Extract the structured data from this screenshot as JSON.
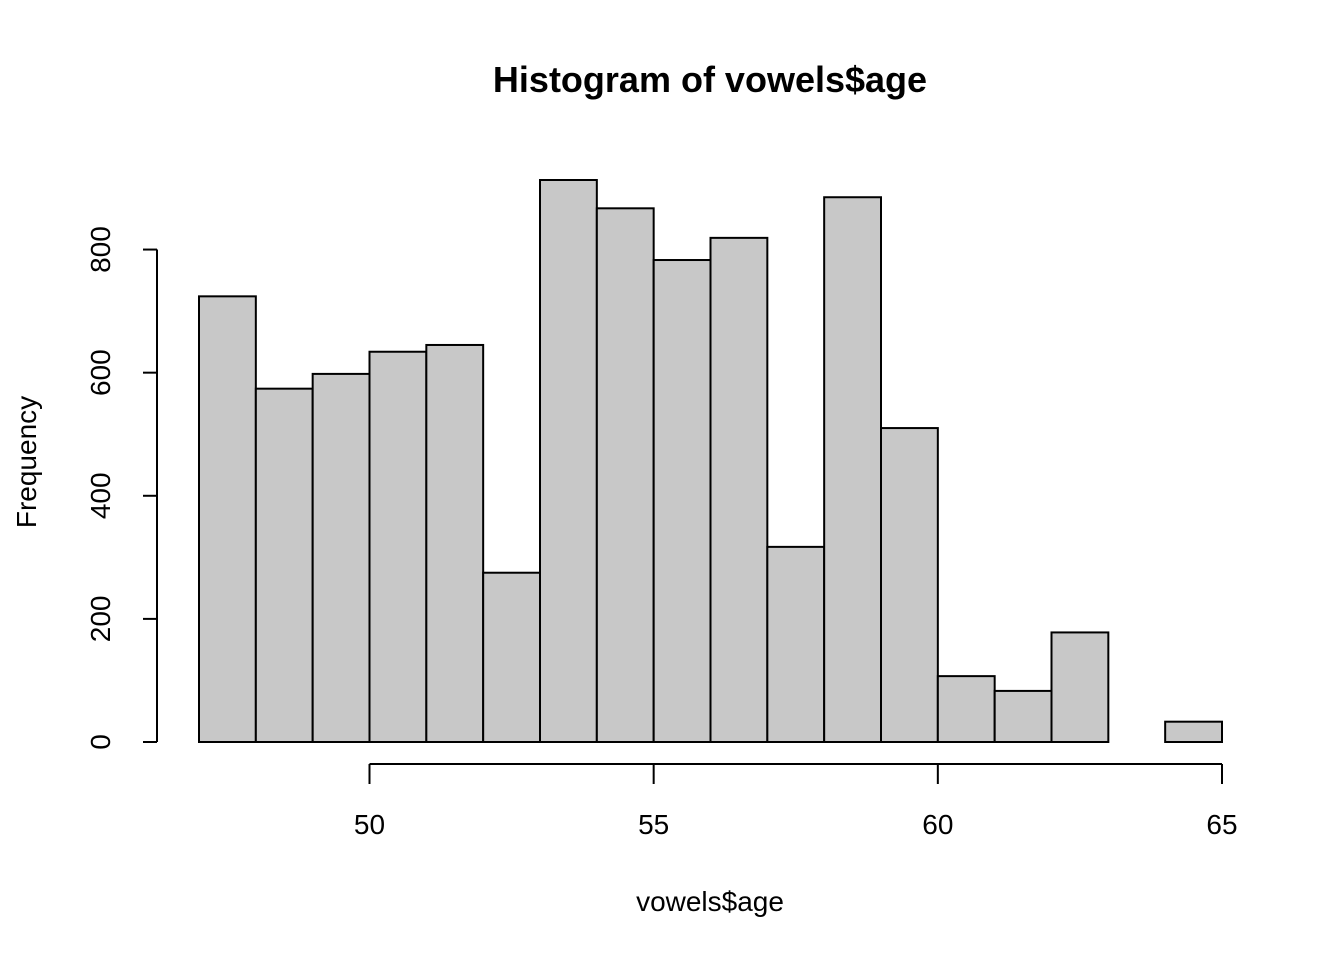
{
  "chart_data": {
    "type": "bar",
    "title": "Histogram of vowels$age",
    "xlabel": "vowels$age",
    "ylabel": "Frequency",
    "bin_width": 1,
    "bins": [
      {
        "start": 47,
        "end": 48,
        "count": 724
      },
      {
        "start": 48,
        "end": 49,
        "count": 574
      },
      {
        "start": 49,
        "end": 50,
        "count": 598
      },
      {
        "start": 50,
        "end": 51,
        "count": 634
      },
      {
        "start": 51,
        "end": 52,
        "count": 645
      },
      {
        "start": 52,
        "end": 53,
        "count": 275
      },
      {
        "start": 53,
        "end": 54,
        "count": 913
      },
      {
        "start": 54,
        "end": 55,
        "count": 867
      },
      {
        "start": 55,
        "end": 56,
        "count": 783
      },
      {
        "start": 56,
        "end": 57,
        "count": 819
      },
      {
        "start": 57,
        "end": 58,
        "count": 317
      },
      {
        "start": 58,
        "end": 59,
        "count": 885
      },
      {
        "start": 59,
        "end": 60,
        "count": 510
      },
      {
        "start": 60,
        "end": 61,
        "count": 107
      },
      {
        "start": 61,
        "end": 62,
        "count": 83
      },
      {
        "start": 62,
        "end": 63,
        "count": 178
      },
      {
        "start": 63,
        "end": 64,
        "count": 0
      },
      {
        "start": 64,
        "end": 65,
        "count": 33
      }
    ],
    "xlim": [
      47,
      65
    ],
    "ylim": [
      0,
      913
    ],
    "x_ticks": [
      50,
      55,
      60,
      65
    ],
    "y_ticks": [
      0,
      200,
      400,
      600,
      800
    ],
    "bar_color": "#C8C8C8",
    "grid": false
  }
}
